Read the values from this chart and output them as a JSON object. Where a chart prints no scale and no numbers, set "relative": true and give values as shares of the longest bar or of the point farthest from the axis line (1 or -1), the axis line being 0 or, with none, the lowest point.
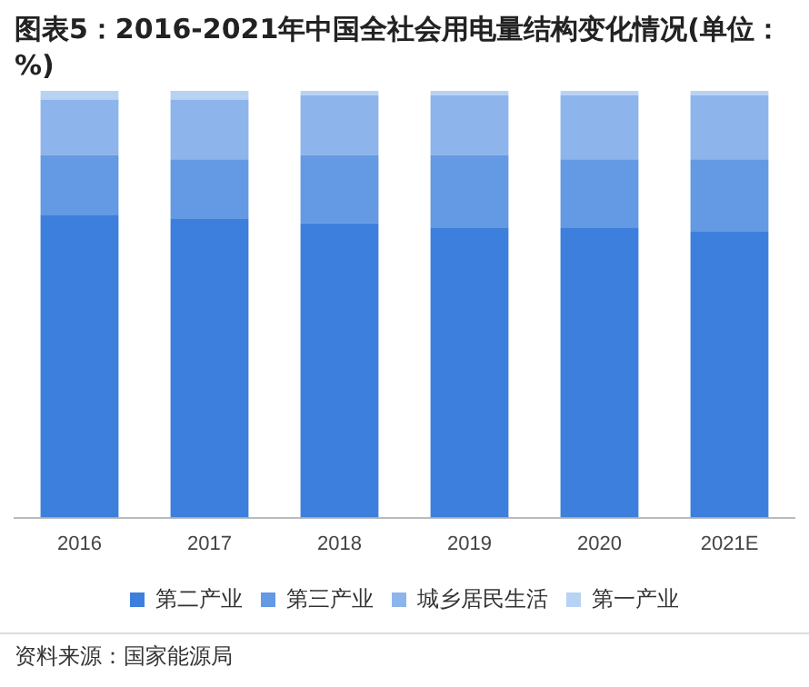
{
  "chart_data": {
    "type": "bar",
    "title": "图表5：2016-2021年中国全社会用电量结构变化情况(单位：%)",
    "categories": [
      "2016",
      "2017",
      "2018",
      "2019",
      "2020",
      "2021E"
    ],
    "stacked": true,
    "relative": true,
    "legend": "bottom",
    "grid": false,
    "series": [
      {
        "name": "第二产业",
        "color": "#3d7fdc",
        "values": [
          0.71,
          0.7,
          0.69,
          0.68,
          0.68,
          0.67
        ]
      },
      {
        "name": "第三产业",
        "color": "#6499e3",
        "values": [
          0.14,
          0.14,
          0.16,
          0.17,
          0.16,
          0.17
        ]
      },
      {
        "name": "城乡居民生活",
        "color": "#8db5ec",
        "values": [
          0.13,
          0.14,
          0.14,
          0.14,
          0.15,
          0.15
        ]
      },
      {
        "name": "第一产业",
        "color": "#b8d2f4",
        "values": [
          0.02,
          0.02,
          0.01,
          0.01,
          0.01,
          0.01
        ]
      }
    ],
    "annotations": [
      "资料来源：国家能源局"
    ]
  }
}
